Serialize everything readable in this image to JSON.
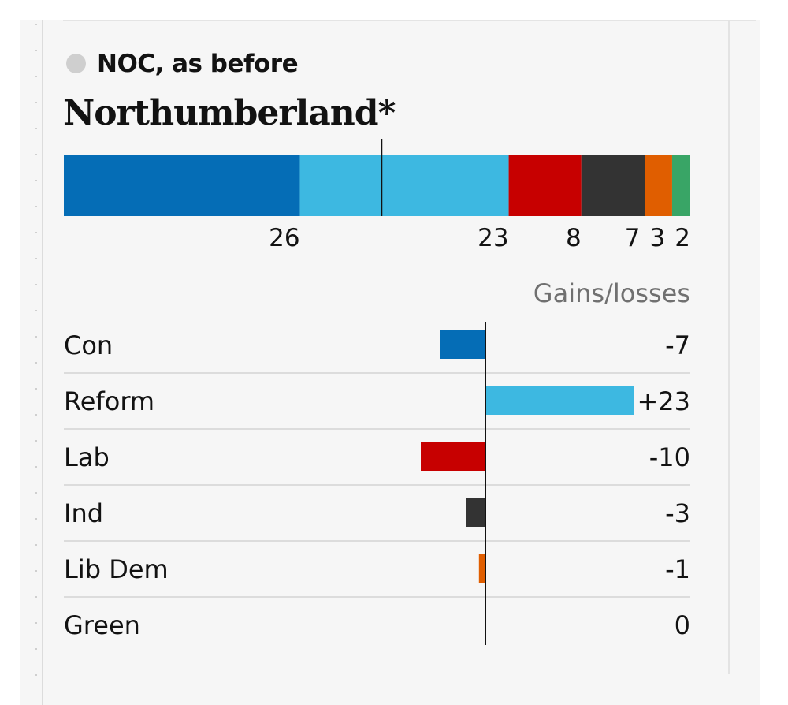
{
  "status": {
    "text": "NOC, as before",
    "dot_color": "#cfcfcf"
  },
  "council": {
    "name": "Northumberland*"
  },
  "chart_data": [
    {
      "type": "bar",
      "orientation": "horizontal-stacked",
      "title": "",
      "categories": [
        "Con",
        "Reform",
        "Lab",
        "Ind",
        "Lib Dem",
        "Green"
      ],
      "values": [
        26,
        23,
        8,
        7,
        3,
        2
      ],
      "colors": [
        "#056db6",
        "#3db8e1",
        "#c70000",
        "#333333",
        "#e05e00",
        "#39a566"
      ],
      "majority_marker": 35,
      "data_labels": [
        "26",
        "23",
        "8",
        "7",
        "3",
        "2"
      ]
    },
    {
      "type": "bar",
      "orientation": "horizontal-diverging",
      "title": "Gains/losses",
      "categories": [
        "Con",
        "Reform",
        "Lab",
        "Ind",
        "Lib Dem",
        "Green"
      ],
      "values": [
        -7,
        23,
        -10,
        -3,
        -1,
        0
      ],
      "value_labels": [
        "-7",
        "+23",
        "-10",
        "-3",
        "-1",
        "0"
      ],
      "colors": [
        "#056db6",
        "#3db8e1",
        "#c70000",
        "#333333",
        "#e05e00",
        "#39a566"
      ]
    }
  ]
}
